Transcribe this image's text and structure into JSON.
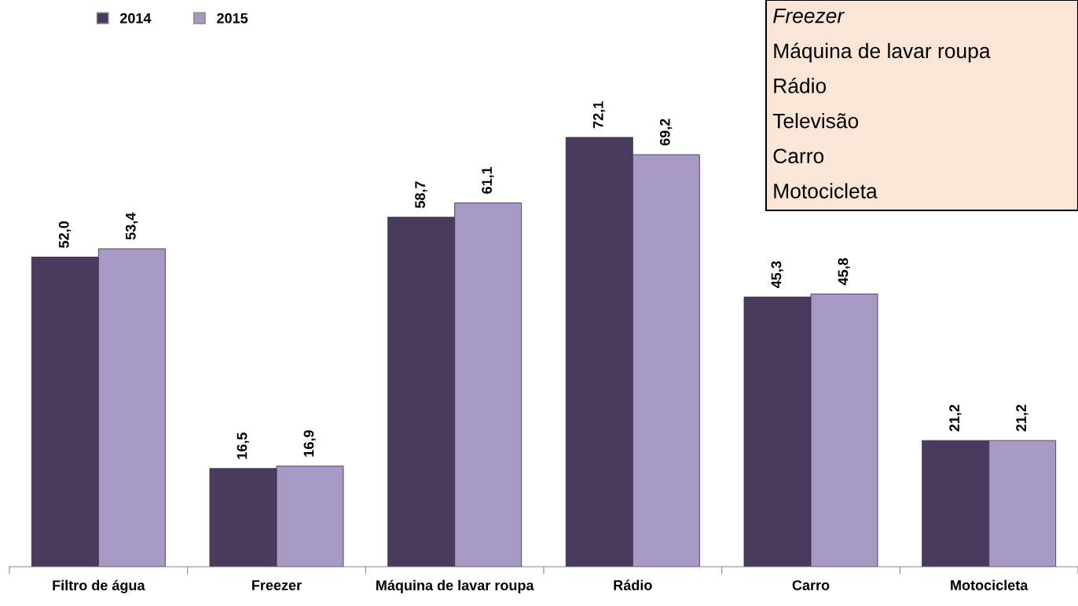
{
  "chart_data": {
    "type": "bar",
    "categories": [
      "Filtro de água",
      "Freezer",
      "Máquina de lavar roupa",
      "Rádio",
      "Carro",
      "Motocicleta"
    ],
    "series": [
      {
        "name": "2014",
        "color": "#4a3a5e",
        "values": [
          52.0,
          16.5,
          58.7,
          72.1,
          45.3,
          21.2
        ],
        "value_labels": [
          "52,0",
          "16,5",
          "58,7",
          "72,1",
          "45,3",
          "21,2"
        ]
      },
      {
        "name": "2015",
        "color": "#a898c4",
        "values": [
          53.4,
          16.9,
          61.1,
          69.2,
          45.8,
          21.2
        ],
        "value_labels": [
          "53,4",
          "16,9",
          "61,1",
          "69,2",
          "45,8",
          "21,2"
        ]
      }
    ],
    "legend": "top left",
    "grid": false,
    "annotations": [
      "Freezer",
      "Máquina de lavar roupa",
      "Rádio",
      "Televisão",
      "Carro",
      "Motocicleta"
    ]
  }
}
